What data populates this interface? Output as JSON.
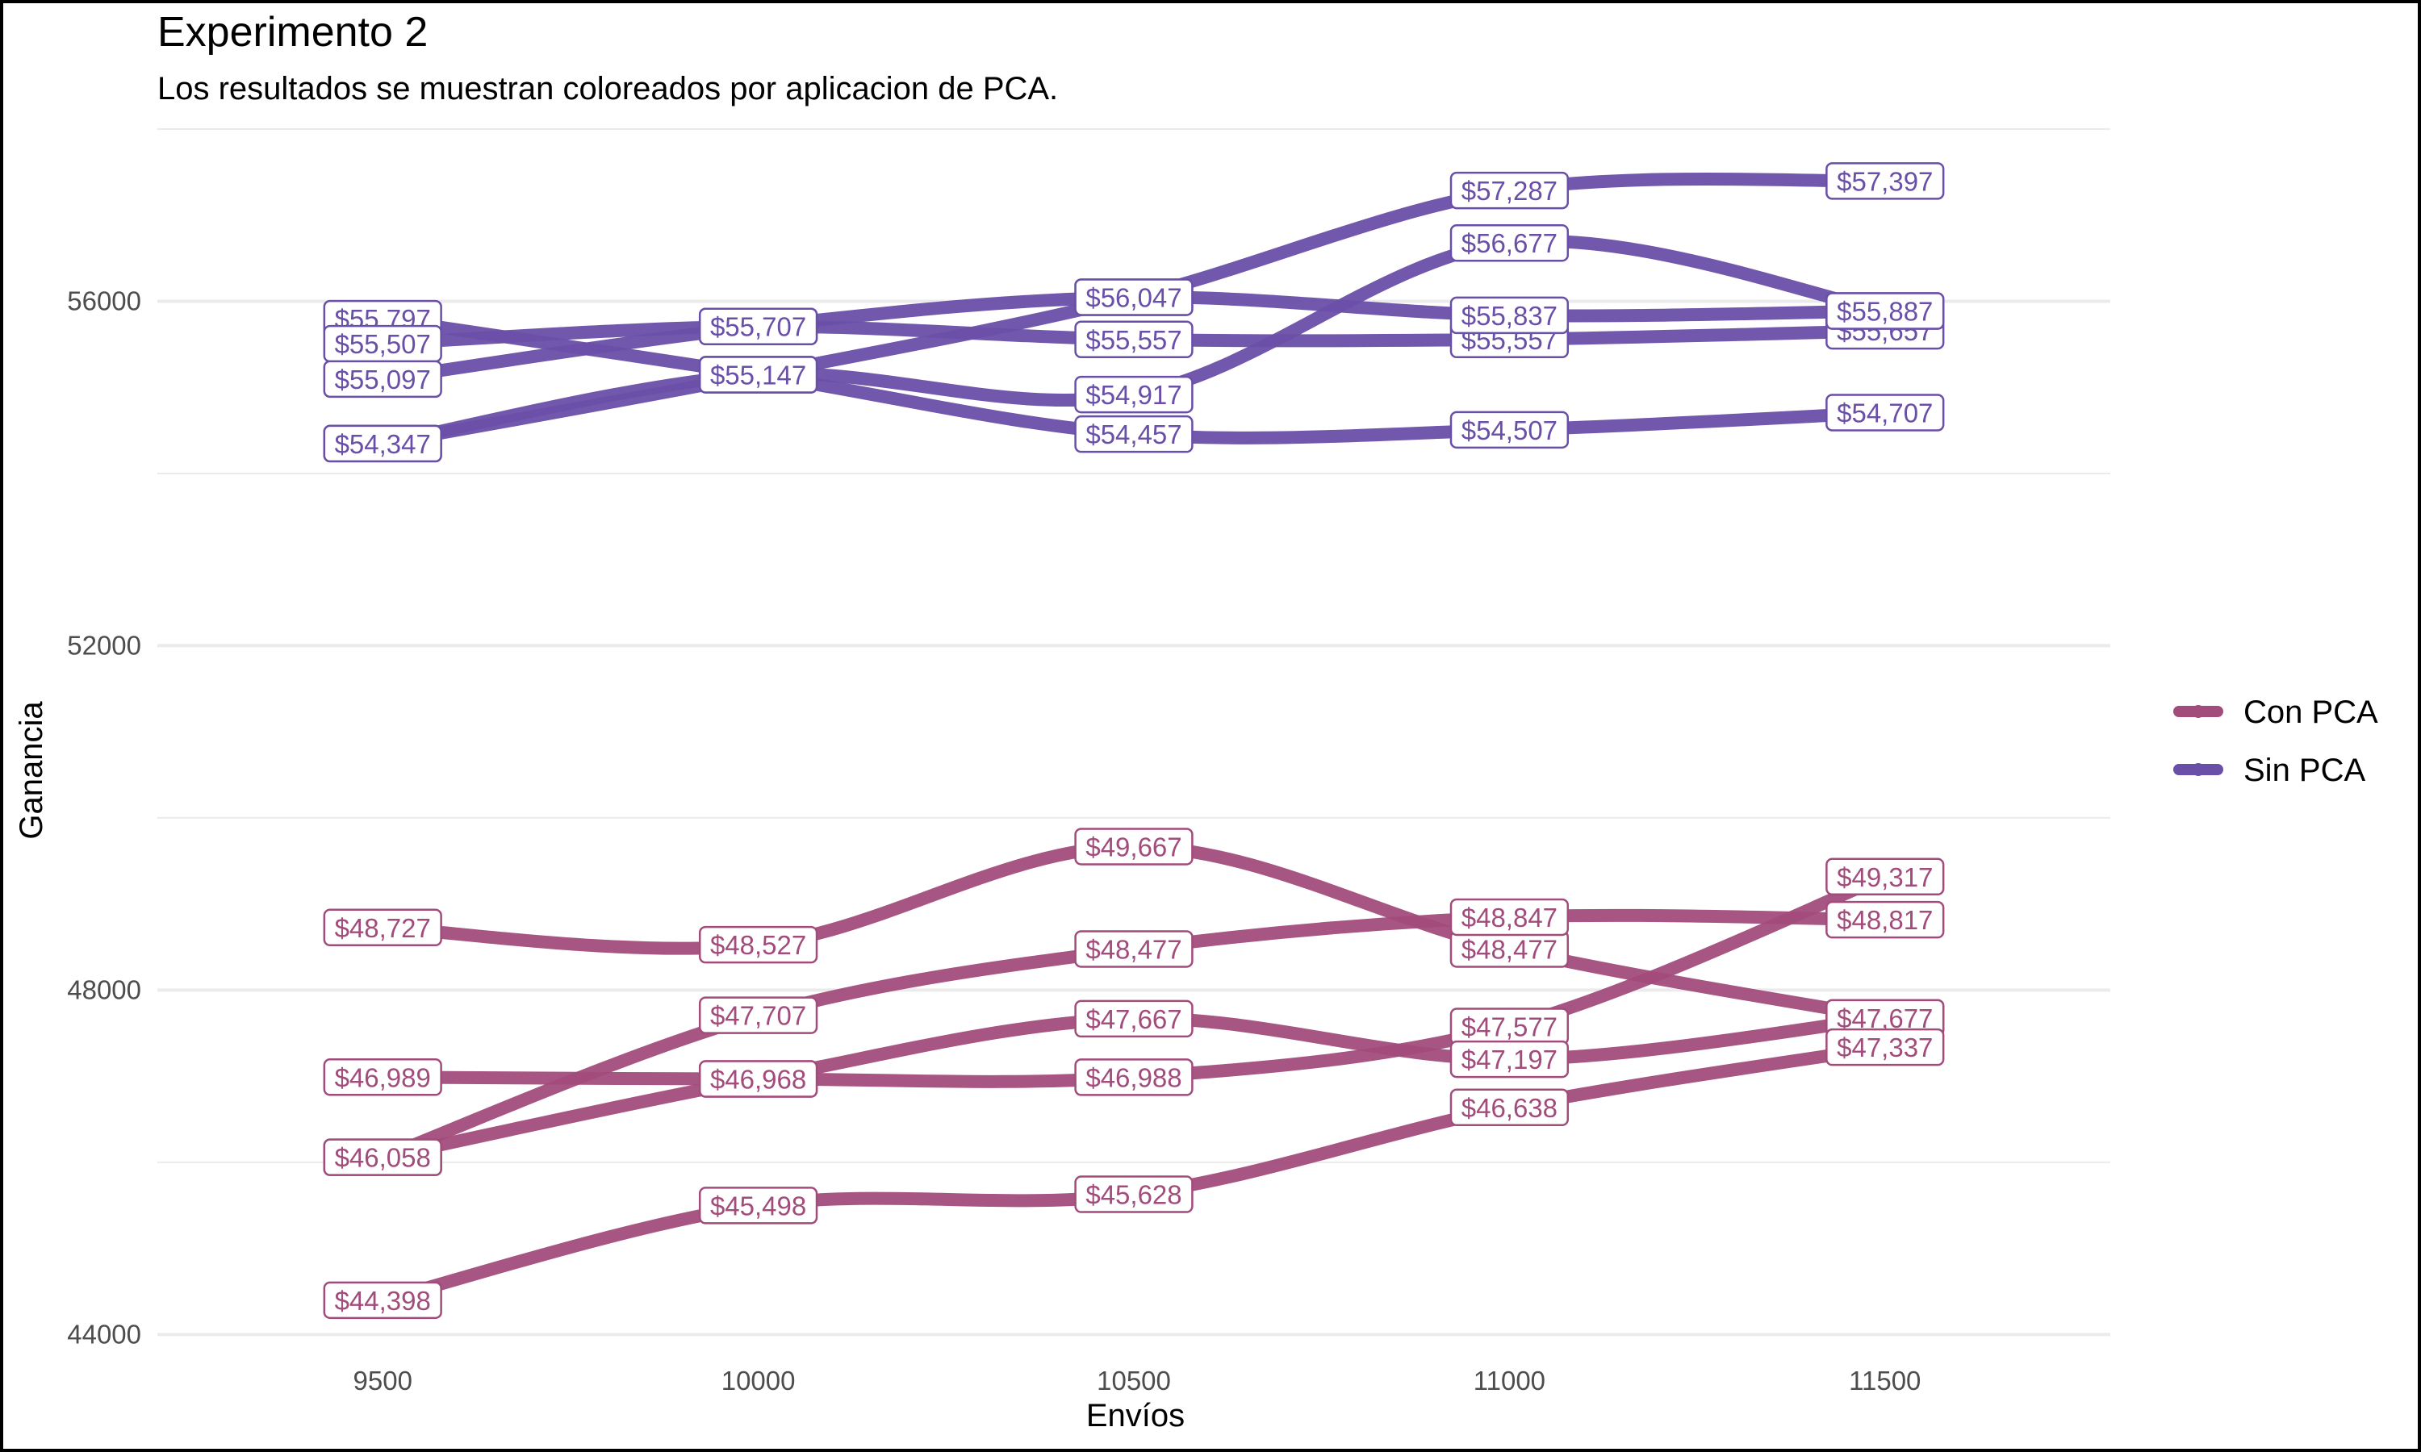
{
  "chart_data": {
    "type": "line",
    "title": "Experimento 2",
    "subtitle": "Los resultados se muestran coloreados por aplicacion de PCA.",
    "xlabel": "Envíos",
    "ylabel": "Ganancia",
    "x_ticks": [
      9500,
      10000,
      10500,
      11000,
      11500
    ],
    "y_ticks": [
      44000,
      48000,
      52000,
      56000
    ],
    "xlim": [
      9200,
      11800
    ],
    "ylim": [
      43900,
      58000
    ],
    "grid": true,
    "legend_position": "right",
    "colors": {
      "Con PCA": "#a24c7b",
      "Sin PCA": "#6a4fa8"
    },
    "label_format": "$",
    "legend": [
      "Con PCA",
      "Sin PCA"
    ],
    "x": [
      9500,
      10000,
      10500,
      11000,
      11500
    ],
    "series": [
      {
        "group": "Sin PCA",
        "values": [
          55797,
          55147,
          54457,
          54507,
          54707
        ]
      },
      {
        "group": "Sin PCA",
        "values": [
          55507,
          55707,
          55557,
          55557,
          55657
        ]
      },
      {
        "group": "Sin PCA",
        "values": [
          55097,
          55707,
          56047,
          55837,
          55887
        ]
      },
      {
        "group": "Sin PCA",
        "values": [
          54347,
          55147,
          56047,
          57287,
          57397
        ]
      },
      {
        "group": "Sin PCA",
        "values": [
          54347,
          55147,
          54917,
          56677,
          55887
        ]
      },
      {
        "group": "Con PCA",
        "values": [
          48727,
          48527,
          49667,
          48477,
          47677
        ]
      },
      {
        "group": "Con PCA",
        "values": [
          46989,
          46968,
          46988,
          47577,
          49317
        ]
      },
      {
        "group": "Con PCA",
        "values": [
          46058,
          47707,
          48477,
          48847,
          48817
        ]
      },
      {
        "group": "Con PCA",
        "values": [
          46058,
          46968,
          47667,
          47197,
          47677
        ]
      },
      {
        "group": "Con PCA",
        "values": [
          44398,
          45498,
          45628,
          46638,
          47337
        ]
      }
    ]
  }
}
